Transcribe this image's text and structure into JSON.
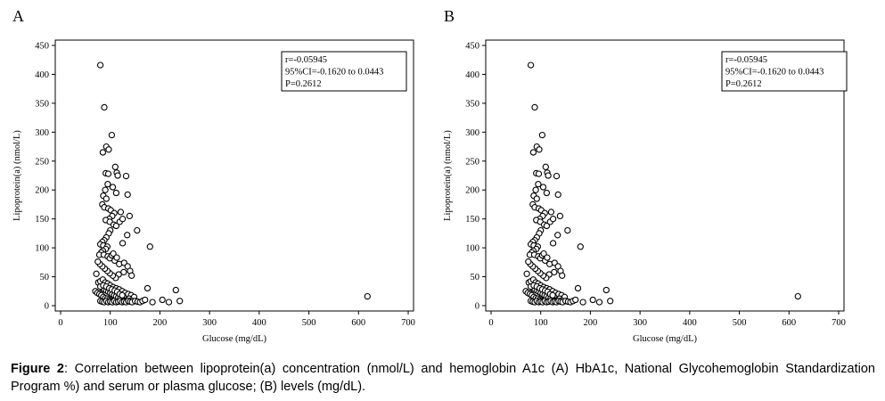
{
  "figure": {
    "caption_label": "Figure 2",
    "caption_text": ": Correlation between lipoprotein(a) concentration (nmol/L) and hemoglobin A1c (A) HbA1c, National Glycohemoglobin Standardization Program %) and serum or plasma glucose; (B) levels (mg/dL)."
  },
  "chart_data": [
    {
      "type": "scatter",
      "panel_label": "A",
      "xlabel": "Glucose (mg/dL)",
      "ylabel": "Lipoprotein(a) (nmol/L)",
      "xlim": [
        0,
        700
      ],
      "ylim": [
        0,
        450
      ],
      "x_ticks": [
        0,
        100,
        200,
        300,
        400,
        500,
        600,
        700
      ],
      "y_ticks": [
        0,
        50,
        100,
        150,
        200,
        250,
        300,
        350,
        400,
        450
      ],
      "grid": false,
      "annotation": [
        "r=-0.05945",
        "95%CI=-0.1620 to 0.0443",
        "P=0.2612"
      ],
      "annotation_placement": "top-right",
      "marker": "open-circle",
      "points": [
        [
          80,
          416
        ],
        [
          88,
          343
        ],
        [
          92,
          275
        ],
        [
          97,
          270
        ],
        [
          103,
          295
        ],
        [
          85,
          265
        ],
        [
          91,
          229
        ],
        [
          96,
          228
        ],
        [
          110,
          240
        ],
        [
          113,
          230
        ],
        [
          115,
          225
        ],
        [
          132,
          224
        ],
        [
          135,
          192
        ],
        [
          139,
          155
        ],
        [
          112,
          195
        ],
        [
          105,
          205
        ],
        [
          95,
          210
        ],
        [
          90,
          200
        ],
        [
          86,
          190
        ],
        [
          92,
          185
        ],
        [
          84,
          175
        ],
        [
          88,
          170
        ],
        [
          96,
          168
        ],
        [
          101,
          165
        ],
        [
          108,
          160
        ],
        [
          104,
          155
        ],
        [
          98,
          150
        ],
        [
          91,
          148
        ],
        [
          99,
          145
        ],
        [
          107,
          140
        ],
        [
          112,
          138
        ],
        [
          119,
          145
        ],
        [
          121,
          162
        ],
        [
          125,
          150
        ],
        [
          154,
          130
        ],
        [
          134,
          122
        ],
        [
          125,
          108
        ],
        [
          100,
          130
        ],
        [
          97,
          125
        ],
        [
          92,
          118
        ],
        [
          88,
          113
        ],
        [
          84,
          110
        ],
        [
          80,
          106
        ],
        [
          86,
          104
        ],
        [
          94,
          102
        ],
        [
          91,
          98
        ],
        [
          85,
          95
        ],
        [
          82,
          92
        ],
        [
          78,
          88
        ],
        [
          87,
          88
        ],
        [
          95,
          85
        ],
        [
          99,
          82
        ],
        [
          103,
          87
        ],
        [
          106,
          90
        ],
        [
          109,
          78
        ],
        [
          113,
          83
        ],
        [
          118,
          72
        ],
        [
          128,
          74
        ],
        [
          135,
          68
        ],
        [
          140,
          60
        ],
        [
          143,
          52
        ],
        [
          127,
          58
        ],
        [
          117,
          54
        ],
        [
          111,
          48
        ],
        [
          105,
          52
        ],
        [
          99,
          56
        ],
        [
          94,
          60
        ],
        [
          89,
          64
        ],
        [
          84,
          68
        ],
        [
          79,
          72
        ],
        [
          75,
          76
        ],
        [
          72,
          55
        ],
        [
          76,
          40
        ],
        [
          80,
          42
        ],
        [
          85,
          45
        ],
        [
          90,
          40
        ],
        [
          95,
          38
        ],
        [
          100,
          35
        ],
        [
          106,
          32
        ],
        [
          112,
          30
        ],
        [
          118,
          28
        ],
        [
          124,
          25
        ],
        [
          130,
          22
        ],
        [
          136,
          20
        ],
        [
          142,
          18
        ],
        [
          148,
          15
        ],
        [
          70,
          25
        ],
        [
          74,
          22
        ],
        [
          78,
          20
        ],
        [
          82,
          18
        ],
        [
          86,
          15
        ],
        [
          90,
          13
        ],
        [
          94,
          12
        ],
        [
          98,
          10
        ],
        [
          102,
          9
        ],
        [
          106,
          8
        ],
        [
          110,
          10
        ],
        [
          114,
          12
        ],
        [
          118,
          15
        ],
        [
          122,
          11
        ],
        [
          126,
          9
        ],
        [
          130,
          8
        ],
        [
          134,
          10
        ],
        [
          138,
          12
        ],
        [
          142,
          9
        ],
        [
          84,
          30
        ],
        [
          88,
          28
        ],
        [
          92,
          26
        ],
        [
          96,
          24
        ],
        [
          100,
          22
        ],
        [
          104,
          20
        ],
        [
          108,
          18
        ],
        [
          112,
          16
        ],
        [
          116,
          14
        ],
        [
          120,
          13
        ],
        [
          80,
          33
        ],
        [
          86,
          35
        ],
        [
          92,
          33
        ],
        [
          98,
          30
        ],
        [
          103,
          28
        ],
        [
          109,
          26
        ],
        [
          114,
          24
        ],
        [
          119,
          20
        ],
        [
          124,
          18
        ],
        [
          80,
          8
        ],
        [
          84,
          7
        ],
        [
          88,
          6
        ],
        [
          92,
          8
        ],
        [
          96,
          6
        ],
        [
          100,
          7
        ],
        [
          104,
          6
        ],
        [
          108,
          8
        ],
        [
          112,
          6
        ],
        [
          116,
          7
        ],
        [
          120,
          8
        ],
        [
          124,
          6
        ],
        [
          128,
          7
        ],
        [
          132,
          6
        ],
        [
          136,
          8
        ],
        [
          140,
          7
        ],
        [
          144,
          6
        ],
        [
          150,
          8
        ],
        [
          155,
          7
        ],
        [
          160,
          6
        ],
        [
          165,
          8
        ],
        [
          170,
          10
        ],
        [
          175,
          30
        ],
        [
          180,
          102
        ],
        [
          185,
          6
        ],
        [
          205,
          10
        ],
        [
          218,
          6
        ],
        [
          232,
          27
        ],
        [
          240,
          8
        ],
        [
          618,
          16
        ]
      ]
    },
    {
      "type": "scatter",
      "panel_label": "B",
      "xlabel": "Glucose (mg/dL)",
      "ylabel": "Lipoprotein(a) (nmol/L)",
      "xlim": [
        0,
        700
      ],
      "ylim": [
        0,
        450
      ],
      "x_ticks": [
        0,
        100,
        200,
        300,
        400,
        500,
        600,
        700
      ],
      "y_ticks": [
        0,
        50,
        100,
        150,
        200,
        250,
        300,
        350,
        400,
        450
      ],
      "grid": false,
      "annotation": [
        "r=-0.05945",
        "95%CI=-0.1620 to 0.0443",
        "P=0.2612"
      ],
      "annotation_placement": "top-right",
      "marker": "open-circle",
      "points": [
        [
          80,
          416
        ],
        [
          88,
          343
        ],
        [
          92,
          275
        ],
        [
          97,
          270
        ],
        [
          103,
          295
        ],
        [
          85,
          265
        ],
        [
          91,
          229
        ],
        [
          96,
          228
        ],
        [
          110,
          240
        ],
        [
          113,
          230
        ],
        [
          115,
          225
        ],
        [
          132,
          224
        ],
        [
          135,
          192
        ],
        [
          139,
          155
        ],
        [
          112,
          195
        ],
        [
          105,
          205
        ],
        [
          95,
          210
        ],
        [
          90,
          200
        ],
        [
          86,
          190
        ],
        [
          92,
          185
        ],
        [
          84,
          175
        ],
        [
          88,
          170
        ],
        [
          96,
          168
        ],
        [
          101,
          165
        ],
        [
          108,
          160
        ],
        [
          104,
          155
        ],
        [
          98,
          150
        ],
        [
          91,
          148
        ],
        [
          99,
          145
        ],
        [
          107,
          140
        ],
        [
          112,
          138
        ],
        [
          119,
          145
        ],
        [
          121,
          162
        ],
        [
          125,
          150
        ],
        [
          154,
          130
        ],
        [
          134,
          122
        ],
        [
          125,
          108
        ],
        [
          100,
          130
        ],
        [
          97,
          125
        ],
        [
          92,
          118
        ],
        [
          88,
          113
        ],
        [
          84,
          110
        ],
        [
          80,
          106
        ],
        [
          86,
          104
        ],
        [
          94,
          102
        ],
        [
          91,
          98
        ],
        [
          85,
          95
        ],
        [
          82,
          92
        ],
        [
          78,
          88
        ],
        [
          87,
          88
        ],
        [
          95,
          85
        ],
        [
          99,
          82
        ],
        [
          103,
          87
        ],
        [
          106,
          90
        ],
        [
          109,
          78
        ],
        [
          113,
          83
        ],
        [
          118,
          72
        ],
        [
          128,
          74
        ],
        [
          135,
          68
        ],
        [
          140,
          60
        ],
        [
          143,
          52
        ],
        [
          127,
          58
        ],
        [
          117,
          54
        ],
        [
          111,
          48
        ],
        [
          105,
          52
        ],
        [
          99,
          56
        ],
        [
          94,
          60
        ],
        [
          89,
          64
        ],
        [
          84,
          68
        ],
        [
          79,
          72
        ],
        [
          75,
          76
        ],
        [
          72,
          55
        ],
        [
          76,
          40
        ],
        [
          80,
          42
        ],
        [
          85,
          45
        ],
        [
          90,
          40
        ],
        [
          95,
          38
        ],
        [
          100,
          35
        ],
        [
          106,
          32
        ],
        [
          112,
          30
        ],
        [
          118,
          28
        ],
        [
          124,
          25
        ],
        [
          130,
          22
        ],
        [
          136,
          20
        ],
        [
          142,
          18
        ],
        [
          148,
          15
        ],
        [
          70,
          25
        ],
        [
          74,
          22
        ],
        [
          78,
          20
        ],
        [
          82,
          18
        ],
        [
          86,
          15
        ],
        [
          90,
          13
        ],
        [
          94,
          12
        ],
        [
          98,
          10
        ],
        [
          102,
          9
        ],
        [
          106,
          8
        ],
        [
          110,
          10
        ],
        [
          114,
          12
        ],
        [
          118,
          15
        ],
        [
          122,
          11
        ],
        [
          126,
          9
        ],
        [
          130,
          8
        ],
        [
          134,
          10
        ],
        [
          138,
          12
        ],
        [
          142,
          9
        ],
        [
          84,
          30
        ],
        [
          88,
          28
        ],
        [
          92,
          26
        ],
        [
          96,
          24
        ],
        [
          100,
          22
        ],
        [
          104,
          20
        ],
        [
          108,
          18
        ],
        [
          112,
          16
        ],
        [
          116,
          14
        ],
        [
          120,
          13
        ],
        [
          80,
          33
        ],
        [
          86,
          35
        ],
        [
          92,
          33
        ],
        [
          98,
          30
        ],
        [
          103,
          28
        ],
        [
          109,
          26
        ],
        [
          114,
          24
        ],
        [
          119,
          20
        ],
        [
          124,
          18
        ],
        [
          80,
          8
        ],
        [
          84,
          7
        ],
        [
          88,
          6
        ],
        [
          92,
          8
        ],
        [
          96,
          6
        ],
        [
          100,
          7
        ],
        [
          104,
          6
        ],
        [
          108,
          8
        ],
        [
          112,
          6
        ],
        [
          116,
          7
        ],
        [
          120,
          8
        ],
        [
          124,
          6
        ],
        [
          128,
          7
        ],
        [
          132,
          6
        ],
        [
          136,
          8
        ],
        [
          140,
          7
        ],
        [
          144,
          6
        ],
        [
          150,
          8
        ],
        [
          155,
          7
        ],
        [
          160,
          6
        ],
        [
          165,
          8
        ],
        [
          170,
          10
        ],
        [
          175,
          30
        ],
        [
          180,
          102
        ],
        [
          185,
          6
        ],
        [
          205,
          10
        ],
        [
          218,
          6
        ],
        [
          232,
          27
        ],
        [
          240,
          8
        ],
        [
          618,
          16
        ]
      ]
    }
  ]
}
